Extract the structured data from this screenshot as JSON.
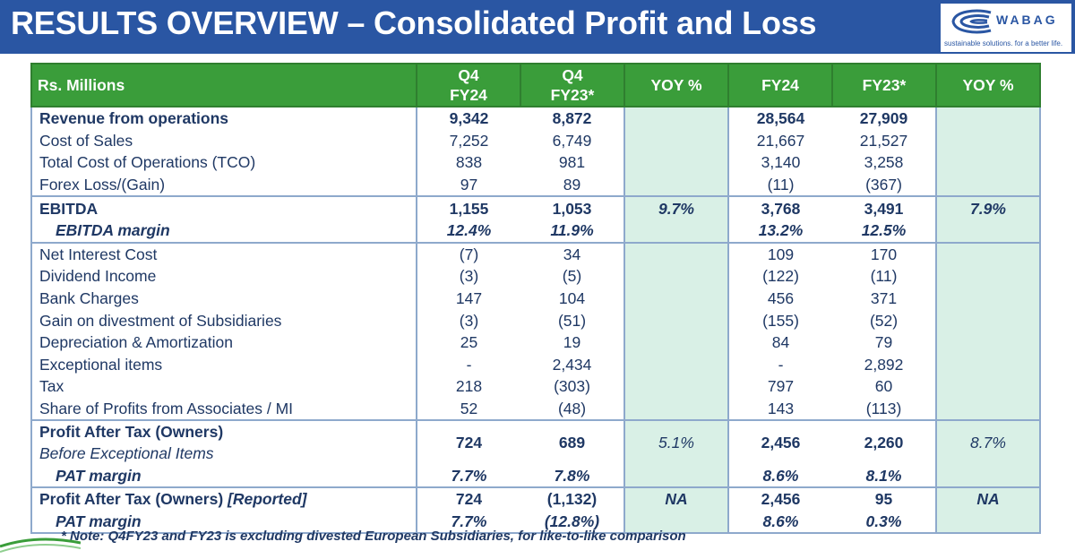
{
  "header": {
    "title": "RESULTS OVERVIEW – Consolidated Profit and Loss",
    "logo_word": "WABAG",
    "logo_tagline": "sustainable solutions. for a better life.",
    "bg_color": "#2a56a3"
  },
  "table": {
    "columns": [
      "Rs. Millions",
      "Q4\nFY24",
      "Q4\nFY23*",
      "YOY %",
      "FY24",
      "FY23*",
      "YOY %"
    ],
    "col_q4fy24_line1": "Q4",
    "col_q4fy24_line2": "FY24",
    "col_q4fy23_line1": "Q4",
    "col_q4fy23_line2": "FY23*",
    "rows": [
      {
        "label": "Revenue from operations",
        "q4fy24": "9,342",
        "q4fy23": "8,872",
        "yoy_q": "",
        "fy24": "28,564",
        "fy23": "27,909",
        "yoy_fy": ""
      },
      {
        "label": "Cost of Sales",
        "q4fy24": "7,252",
        "q4fy23": "6,749",
        "yoy_q": "",
        "fy24": "21,667",
        "fy23": "21,527",
        "yoy_fy": ""
      },
      {
        "label": "Total Cost of Operations (TCO)",
        "q4fy24": "838",
        "q4fy23": "981",
        "yoy_q": "",
        "fy24": "3,140",
        "fy23": "3,258",
        "yoy_fy": ""
      },
      {
        "label": "Forex Loss/(Gain)",
        "q4fy24": "97",
        "q4fy23": "89",
        "yoy_q": "",
        "fy24": "(11)",
        "fy23": "(367)",
        "yoy_fy": ""
      },
      {
        "label": "EBITDA",
        "q4fy24": "1,155",
        "q4fy23": "1,053",
        "yoy_q": "9.7%",
        "fy24": "3,768",
        "fy23": "3,491",
        "yoy_fy": "7.9%"
      },
      {
        "label": "EBITDA margin",
        "q4fy24": "12.4%",
        "q4fy23": "11.9%",
        "yoy_q": "",
        "fy24": "13.2%",
        "fy23": "12.5%",
        "yoy_fy": ""
      },
      {
        "label": "Net Interest Cost",
        "q4fy24": "(7)",
        "q4fy23": "34",
        "yoy_q": "",
        "fy24": "109",
        "fy23": "170",
        "yoy_fy": ""
      },
      {
        "label": "Dividend Income",
        "q4fy24": "(3)",
        "q4fy23": "(5)",
        "yoy_q": "",
        "fy24": "(122)",
        "fy23": "(11)",
        "yoy_fy": ""
      },
      {
        "label": "Bank Charges",
        "q4fy24": "147",
        "q4fy23": "104",
        "yoy_q": "",
        "fy24": "456",
        "fy23": "371",
        "yoy_fy": ""
      },
      {
        "label": "Gain on divestment of Subsidiaries",
        "q4fy24": "(3)",
        "q4fy23": "(51)",
        "yoy_q": "",
        "fy24": "(155)",
        "fy23": "(52)",
        "yoy_fy": ""
      },
      {
        "label": "Depreciation & Amortization",
        "q4fy24": "25",
        "q4fy23": "19",
        "yoy_q": "",
        "fy24": "84",
        "fy23": "79",
        "yoy_fy": ""
      },
      {
        "label": "Exceptional items",
        "q4fy24": "-",
        "q4fy23": "2,434",
        "yoy_q": "",
        "fy24": "-",
        "fy23": "2,892",
        "yoy_fy": ""
      },
      {
        "label": "Tax",
        "q4fy24": "218",
        "q4fy23": "(303)",
        "yoy_q": "",
        "fy24": "797",
        "fy23": "60",
        "yoy_fy": ""
      },
      {
        "label": "Share of Profits from Associates / MI",
        "q4fy24": "52",
        "q4fy23": "(48)",
        "yoy_q": "",
        "fy24": "143",
        "fy23": "(113)",
        "yoy_fy": ""
      },
      {
        "label": "Profit After Tax (Owners)",
        "label2": "Before Exceptional Items",
        "q4fy24": "724",
        "q4fy23": "689",
        "yoy_q": "5.1%",
        "fy24": "2,456",
        "fy23": "2,260",
        "yoy_fy": "8.7%"
      },
      {
        "label": "PAT margin",
        "q4fy24": "7.7%",
        "q4fy23": "7.8%",
        "yoy_q": "",
        "fy24": "8.6%",
        "fy23": "8.1%",
        "yoy_fy": ""
      },
      {
        "label": "Profit After Tax (Owners)",
        "label_suffix": "[Reported]",
        "q4fy24": "724",
        "q4fy23": "(1,132)",
        "yoy_q": "NA",
        "fy24": "2,456",
        "fy23": "95",
        "yoy_fy": "NA"
      },
      {
        "label": "PAT margin",
        "q4fy24": "7.7%",
        "q4fy23": "(12.8%)",
        "yoy_q": "",
        "fy24": "8.6%",
        "fy23": "0.3%",
        "yoy_fy": ""
      }
    ]
  },
  "note": "* Note: Q4FY23 and FY23 is excluding divested European Subsidiaries, for like-to-like comparison"
}
